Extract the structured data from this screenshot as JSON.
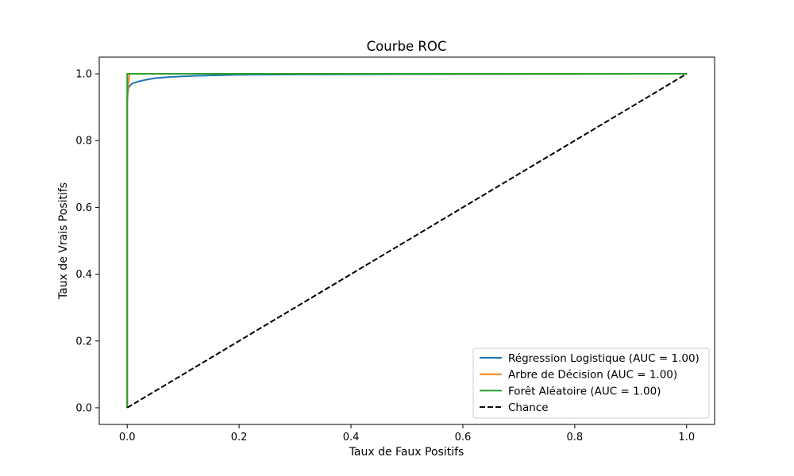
{
  "chart_data": {
    "type": "line",
    "title": "Courbe ROC",
    "xlabel": "Taux de Faux Positifs",
    "ylabel": "Taux de Vrais Positifs",
    "xlim": [
      -0.05,
      1.05
    ],
    "ylim": [
      -0.05,
      1.05
    ],
    "xticks": [
      0.0,
      0.2,
      0.4,
      0.6,
      0.8,
      1.0
    ],
    "xtick_labels": [
      "0.0",
      "0.2",
      "0.4",
      "0.6",
      "0.8",
      "1.0"
    ],
    "yticks": [
      0.0,
      0.2,
      0.4,
      0.6,
      0.8,
      1.0
    ],
    "ytick_labels": [
      "0.0",
      "0.2",
      "0.4",
      "0.6",
      "0.8",
      "1.0"
    ],
    "grid": false,
    "legend_position": "lower-right",
    "series": [
      {
        "name": "Régression Logistique (AUC = 1.00)",
        "color": "#1f77b4",
        "dash": "solid",
        "x": [
          0.0,
          0.0,
          0.001,
          0.002,
          0.003,
          0.005,
          0.008,
          0.012,
          0.02,
          0.03,
          0.05,
          0.08,
          0.12,
          0.2,
          0.3,
          0.5,
          1.0
        ],
        "y": [
          0.0,
          0.92,
          0.94,
          0.955,
          0.96,
          0.965,
          0.97,
          0.973,
          0.977,
          0.981,
          0.987,
          0.991,
          0.994,
          0.997,
          0.998,
          0.999,
          1.0
        ]
      },
      {
        "name": "Arbre de Décision (AUC = 1.00)",
        "color": "#ff7f0e",
        "dash": "solid",
        "x": [
          0.0,
          0.0,
          0.002,
          0.004,
          1.0
        ],
        "y": [
          0.0,
          0.93,
          0.97,
          1.0,
          1.0
        ]
      },
      {
        "name": "Forêt Aléatoire (AUC = 1.00)",
        "color": "#2ca02c",
        "dash": "solid",
        "x": [
          0.0,
          0.0,
          0.001,
          1.0
        ],
        "y": [
          0.0,
          1.0,
          1.0,
          1.0
        ]
      },
      {
        "name": "Chance",
        "color": "#000000",
        "dash": "dashed",
        "x": [
          0.0,
          1.0
        ],
        "y": [
          0.0,
          1.0
        ]
      }
    ]
  }
}
